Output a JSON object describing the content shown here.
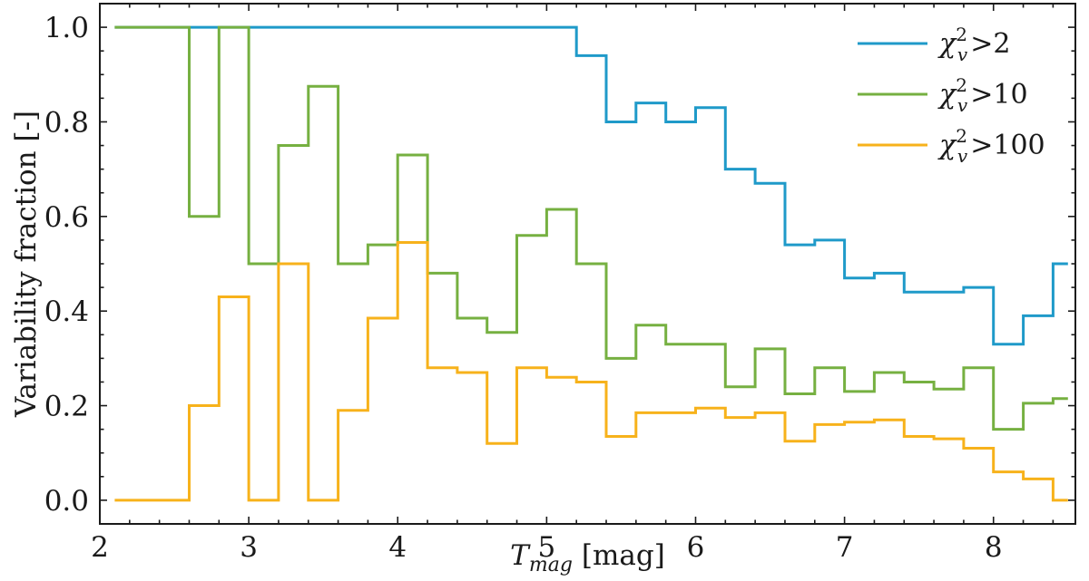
{
  "chart_data": {
    "type": "line",
    "step": "post",
    "xlabel": {
      "main": "T",
      "sub": "mag",
      "unit": "[mag]"
    },
    "ylabel": "Variability fraction [-]",
    "xlim": [
      2.0,
      8.55
    ],
    "ylim": [
      -0.05,
      1.05
    ],
    "x_ticks": [
      2,
      3,
      4,
      5,
      6,
      7,
      8
    ],
    "y_ticks": [
      0.0,
      0.2,
      0.4,
      0.6,
      0.8,
      1.0
    ],
    "x_tick_labels": [
      "2",
      "3",
      "4",
      "5",
      "6",
      "7",
      "8"
    ],
    "y_tick_labels": [
      "0.0",
      "0.2",
      "0.4",
      "0.6",
      "0.8",
      "1.0"
    ],
    "x_minor_step": 0.2,
    "y_minor_step": 0.05,
    "grid": false,
    "legend_position": "top-right",
    "x": [
      2.1,
      2.6,
      2.8,
      3.0,
      3.2,
      3.4,
      3.6,
      3.8,
      4.0,
      4.2,
      4.4,
      4.6,
      4.8,
      5.0,
      5.2,
      5.4,
      5.6,
      5.8,
      6.0,
      6.2,
      6.4,
      6.6,
      6.8,
      7.0,
      7.2,
      7.4,
      7.6,
      7.8,
      8.0,
      8.2,
      8.4
    ],
    "x_end": 8.5,
    "series": [
      {
        "name": "χ²ᵥ>2",
        "legend": {
          "sym": "χ",
          "sup": "2",
          "sub": "v",
          "rest": ">2"
        },
        "color": "#1f9ac9",
        "values": [
          1.0,
          1.0,
          1.0,
          1.0,
          1.0,
          1.0,
          1.0,
          1.0,
          1.0,
          1.0,
          1.0,
          1.0,
          1.0,
          1.0,
          0.94,
          0.8,
          0.84,
          0.8,
          0.83,
          0.7,
          0.67,
          0.54,
          0.55,
          0.47,
          0.48,
          0.44,
          0.44,
          0.45,
          0.33,
          0.39,
          0.5
        ]
      },
      {
        "name": "χ²ᵥ>10",
        "legend": {
          "sym": "χ",
          "sup": "2",
          "sub": "v",
          "rest": ">10"
        },
        "color": "#76b041",
        "values": [
          1.0,
          0.6,
          1.0,
          0.5,
          0.75,
          0.875,
          0.5,
          0.54,
          0.73,
          0.48,
          0.385,
          0.355,
          0.56,
          0.615,
          0.5,
          0.3,
          0.37,
          0.33,
          0.33,
          0.24,
          0.32,
          0.225,
          0.28,
          0.23,
          0.27,
          0.25,
          0.235,
          0.28,
          0.15,
          0.205,
          0.215
        ]
      },
      {
        "name": "χ²ᵥ>100",
        "legend": {
          "sym": "χ",
          "sup": "2",
          "sub": "v",
          "rest": ">100"
        },
        "color": "#f7b21b",
        "values": [
          0.0,
          0.2,
          0.43,
          0.0,
          0.5,
          0.0,
          0.19,
          0.385,
          0.545,
          0.28,
          0.27,
          0.12,
          0.28,
          0.26,
          0.25,
          0.135,
          0.185,
          0.185,
          0.195,
          0.175,
          0.185,
          0.125,
          0.16,
          0.165,
          0.17,
          0.135,
          0.13,
          0.11,
          0.06,
          0.045,
          0.0
        ]
      }
    ]
  }
}
